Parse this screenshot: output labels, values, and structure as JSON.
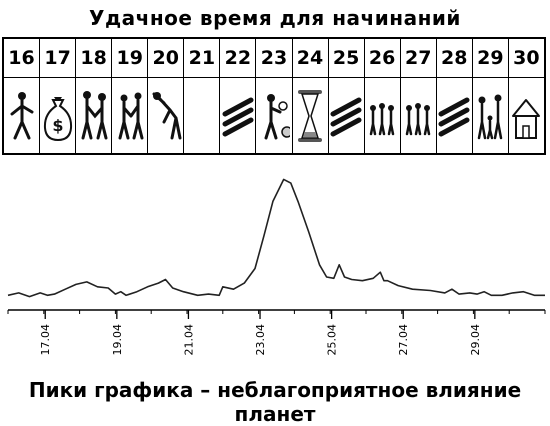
{
  "calendar": {
    "title": "Удачное время для начинаний",
    "days": [
      {
        "label": "16",
        "icon": "person-walking-icon",
        "status": "good"
      },
      {
        "label": "17",
        "icon": "money-bag-icon",
        "status": "good"
      },
      {
        "label": "18",
        "icon": "handshake-icon",
        "status": "good"
      },
      {
        "label": "19",
        "icon": "people-meeting-icon",
        "status": "good"
      },
      {
        "label": "20",
        "icon": "person-exercising-icon",
        "status": "good"
      },
      {
        "label": "21",
        "icon": "none",
        "status": "good"
      },
      {
        "label": "22",
        "icon": "hatched-bars-icon",
        "status": "unfavorable"
      },
      {
        "label": "23",
        "icon": "person-thinking-icon",
        "status": "unfavorable"
      },
      {
        "label": "24",
        "icon": "hourglass-icon",
        "status": "unfavorable"
      },
      {
        "label": "25",
        "icon": "hatched-bars-icon",
        "status": "unfavorable"
      },
      {
        "label": "26",
        "icon": "group-of-people-icon",
        "status": "good"
      },
      {
        "label": "27",
        "icon": "group-of-people-icon",
        "status": "good"
      },
      {
        "label": "28",
        "icon": "hatched-bars-icon",
        "status": "unfavorable"
      },
      {
        "label": "29",
        "icon": "family-icon",
        "status": "good"
      },
      {
        "label": "30",
        "icon": "house-icon",
        "status": "good"
      }
    ]
  },
  "chart_data": {
    "type": "line",
    "title": "",
    "xlabel": "",
    "ylabel": "",
    "x_ticks": [
      "17.04",
      "19.04",
      "21.04",
      "23.04",
      "25.04",
      "27.04",
      "29.04"
    ],
    "x_range": [
      16.0,
      31.0
    ],
    "y_range": [
      0,
      100
    ],
    "grid": false,
    "series": [
      {
        "x": [
          16.0,
          16.3,
          16.6,
          16.9,
          17.1,
          17.3,
          17.6,
          17.9,
          18.2,
          18.5,
          18.8,
          19.0,
          19.15,
          19.3,
          19.6,
          19.9,
          20.2,
          20.4,
          20.6,
          20.9,
          21.3,
          21.6,
          21.9,
          22.0,
          22.3,
          22.6,
          22.9,
          23.15,
          23.4,
          23.7,
          23.9,
          24.1,
          24.4,
          24.7,
          24.9,
          25.1,
          25.25,
          25.4,
          25.6,
          25.9,
          26.2,
          26.4,
          26.5,
          26.6,
          26.9,
          27.3,
          27.8,
          28.2,
          28.4,
          28.6,
          28.9,
          29.1,
          29.3,
          29.5,
          29.8,
          30.1,
          30.4,
          30.7,
          31.0
        ],
        "y": [
          3,
          5,
          2,
          5,
          3,
          4,
          8,
          12,
          14,
          10,
          9,
          4,
          6,
          3,
          6,
          10,
          13,
          16,
          9,
          6,
          3,
          4,
          3,
          10,
          8,
          13,
          25,
          52,
          80,
          98,
          95,
          80,
          55,
          28,
          18,
          17,
          28,
          18,
          16,
          15,
          17,
          22,
          15,
          15,
          11,
          8,
          7,
          5,
          8,
          4,
          5,
          4,
          6,
          3,
          3,
          5,
          6,
          3,
          3
        ]
      }
    ]
  },
  "caption": "Пики графика – неблагоприятное влияние планет"
}
